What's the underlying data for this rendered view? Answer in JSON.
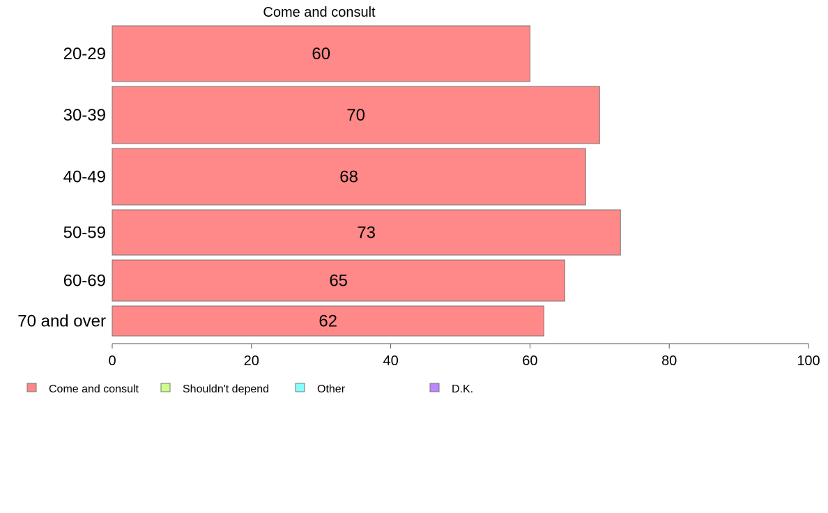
{
  "chart_data": {
    "type": "bar",
    "orientation": "horizontal",
    "title": "Come and consult",
    "categories": [
      "20-29",
      "30-39",
      "40-49",
      "50-59",
      "60-69",
      "70 and over"
    ],
    "series": [
      {
        "name": "Come and consult",
        "values": [
          60,
          70,
          68,
          73,
          65,
          62
        ],
        "color": "#ff8888"
      }
    ],
    "value_labels": [
      "60",
      "70",
      "68",
      "73",
      "65",
      "62"
    ],
    "xlim": [
      0,
      100
    ],
    "xticks": [
      0,
      20,
      40,
      60,
      80,
      100
    ],
    "xtick_labels": [
      "0",
      "20",
      "40",
      "60",
      "80",
      "100"
    ],
    "grid": false,
    "legend": {
      "placement": "bottom-left",
      "entries": [
        {
          "label": "Come and consult",
          "color": "#ff8888"
        },
        {
          "label": "Shouldn't depend",
          "color": "#ccff88"
        },
        {
          "label": "Other",
          "color": "#88ffff"
        },
        {
          "label": "D.K.",
          "color": "#bb88ff"
        }
      ]
    }
  }
}
